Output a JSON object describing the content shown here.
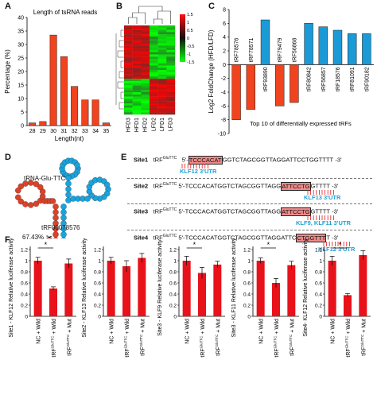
{
  "panels": {
    "a": "A",
    "b": "B",
    "c": "C",
    "d": "D",
    "e": "E",
    "f": "F"
  },
  "colors": {
    "red": "#f0431e",
    "blue": "#1a9ad6",
    "bar_f": "#e8121b"
  },
  "panel_a": {
    "chart_data": {
      "type": "bar",
      "title": "Length of tsRNA reads",
      "xlabel": "Length(nt)",
      "ylabel": "Percentage (%)",
      "categories": [
        "28",
        "29",
        "30",
        "31",
        "32",
        "33",
        "34",
        "35"
      ],
      "values": [
        1,
        1.5,
        33.5,
        25.5,
        14.5,
        9.5,
        9.5,
        1
      ],
      "ylim": [
        0,
        40
      ],
      "yticks": [
        "0",
        "5",
        "10",
        "15",
        "20",
        "25",
        "30",
        "35",
        "40"
      ]
    }
  },
  "panel_b": {
    "chart_data": {
      "type": "heatmap",
      "columns": [
        "HFD3",
        "HFD1",
        "HFD2",
        "LFD2",
        "LFD1",
        "LFD3"
      ],
      "scale": [
        "1.5",
        "1",
        "0.5",
        "0",
        "-0.5",
        "-1",
        "-1.5"
      ]
    }
  },
  "panel_c": {
    "chart_data": {
      "type": "bar",
      "ylabel": "Log2 FoldChange (HFD/LFD)",
      "xlabel": "Top 10 of differentially expressed tRFs",
      "categories": [
        "tRF78576",
        "tRF78571",
        "tRF93890",
        "tRF79479",
        "tRF56868",
        "tRF80842",
        "tRF56857",
        "tRF18576",
        "tRF81091",
        "tRF90182"
      ],
      "values": [
        -8,
        -6.5,
        6.5,
        -6,
        -5.5,
        6,
        5.5,
        5,
        4.5,
        4.5
      ],
      "ylim": [
        -10,
        8
      ],
      "yticks": [
        "8",
        "6",
        "4",
        "2",
        "0",
        "-2",
        "-4",
        "-6",
        "-8",
        "-10"
      ]
    }
  },
  "panel_d": {
    "title": "tRNA-Glu-TTC",
    "frag": "tRF00078576",
    "pct": "67.43%"
  },
  "panel_e": {
    "rows": [
      {
        "site": "Site1",
        "sup": "GluTTC",
        "utr": "KLF12 3'UTR"
      },
      {
        "site": "Site2",
        "sup": "GluTTC",
        "utr": "KLF13 3'UTR"
      },
      {
        "site": "Site3",
        "sup": "GluTTC",
        "utr": "KLF9, KLF11 3'UTR"
      },
      {
        "site": "Site4",
        "sup": "GluTTC",
        "utr": "KLF12 3'UTR"
      }
    ],
    "trf": "tRF",
    "p5": "5'-",
    "p3": "-3'",
    "seq1a": "TCCCACAT",
    "seq1b": "GGTCTAGCGGTTAGGATTCCTGGTTTT",
    "seq2a": "TCCCACATGGTCTAGCGGTTAGG",
    "seq2b": "ATTCCTG",
    "seq2c": "GTTTT",
    "seq3a": "TCCCACATGGTCTAGCGGTTAGG",
    "seq3b": "ATTCCTG",
    "seq3c": "GTTTT",
    "seq4a": "TCCCACATGGTCTAGCGGTTAGGATTC",
    "seq4b": "CTGGTTT",
    "seq4c": "T"
  },
  "panel_f": {
    "ytick_labels": [
      "0",
      "0.2",
      "0.4",
      "0.6",
      "0.8",
      "1",
      "1.2"
    ],
    "star": "*",
    "charts": [
      {
        "chart_data": {
          "type": "bar",
          "ylabel": "Site1 - KLF12 Relative luciferase activity",
          "categories": [
            "NC + Wild",
            "tRF + Wild",
            "tRF + Mut"
          ],
          "cat_sup": [
            "",
            "GluTTC",
            "GluTTC"
          ],
          "values": [
            1.0,
            0.5,
            0.95
          ],
          "errors": [
            0.06,
            0.03,
            0.08
          ],
          "ylim": [
            0,
            1.2
          ],
          "significant": true
        }
      },
      {
        "chart_data": {
          "type": "bar",
          "ylabel": "Site2 - KLF13 Relative luciferase activity",
          "categories": [
            "NC + Wild",
            "tRF + Wild",
            "tRF + Mut"
          ],
          "cat_sup": [
            "",
            "GluTTC",
            "GluTTC"
          ],
          "values": [
            1.0,
            0.9,
            1.05
          ],
          "errors": [
            0.06,
            0.1,
            0.08
          ],
          "ylim": [
            0,
            1.2
          ],
          "significant": false
        }
      },
      {
        "chart_data": {
          "type": "bar",
          "ylabel": "Site3 - KLF9 Relative luciferase activity",
          "categories": [
            "NC + Wild",
            "tRF + Wild",
            "tRF + Mut"
          ],
          "cat_sup": [
            "",
            "GluTTC",
            "GluTTC"
          ],
          "values": [
            1.0,
            0.78,
            0.93
          ],
          "errors": [
            0.08,
            0.1,
            0.06
          ],
          "ylim": [
            0,
            1.2
          ],
          "significant": true
        }
      },
      {
        "chart_data": {
          "type": "bar",
          "ylabel": "Site3 - KLF11 Relative luciferase activity",
          "categories": [
            "NC + Wild",
            "tRF + Wild",
            "tRF + Mut"
          ],
          "cat_sup": [
            "",
            "GluTTC",
            "GluTTC"
          ],
          "values": [
            1.0,
            0.6,
            0.92
          ],
          "errors": [
            0.05,
            0.08,
            0.07
          ],
          "ylim": [
            0,
            1.2
          ],
          "significant": true
        }
      },
      {
        "chart_data": {
          "type": "bar",
          "ylabel": "Site4- KLF12 Relative luciferase activity",
          "categories": [
            "NC + Wild",
            "tRF + Wild",
            "tRF + Mut"
          ],
          "cat_sup": [
            "",
            "GluTTC",
            "GluTTC"
          ],
          "values": [
            1.0,
            0.38,
            1.1
          ],
          "errors": [
            0.08,
            0.03,
            0.08
          ],
          "ylim": [
            0,
            1.2
          ],
          "significant": true
        }
      }
    ]
  }
}
